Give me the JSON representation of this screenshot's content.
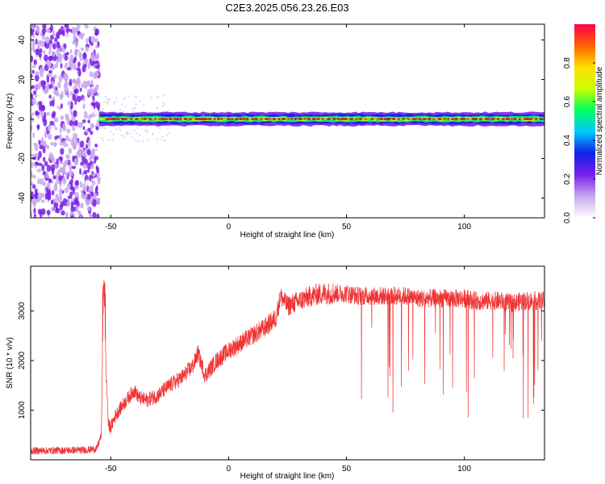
{
  "title": "C2E3.2025.056.23.26.E03",
  "chart_data": [
    {
      "type": "heatmap",
      "title": "C2E3.2025.056.23.26.E03",
      "xlabel": "Height of straight line (km)",
      "ylabel": "Frequency (Hz)",
      "xlim": [
        -84,
        134
      ],
      "ylim": [
        -50,
        48
      ],
      "xticks": [
        -50,
        0,
        50,
        100
      ],
      "yticks": [
        -40,
        -20,
        0,
        20,
        40
      ],
      "colorbar": {
        "label": "Normalized spectral amplitude",
        "range": [
          0.0,
          1.0
        ],
        "ticks": [
          0.0,
          0.2,
          0.4,
          0.6,
          0.8
        ],
        "colormap": [
          "#ffffff",
          "#c8a8f0",
          "#7a20e8",
          "#1020e8",
          "#00c8ff",
          "#00ff60",
          "#c8ff00",
          "#ffe000",
          "#ff6000",
          "#ff0050"
        ]
      },
      "regions": [
        {
          "x": [
            -84,
            -55
          ],
          "freq": [
            -50,
            48
          ],
          "amplitude": [
            0.05,
            0.25
          ],
          "note_color": "#7a20e8"
        },
        {
          "x": [
            -55,
            134
          ],
          "freq": [
            -2,
            2
          ],
          "amplitude": [
            0.3,
            1.0
          ],
          "peak_freq": 0
        }
      ]
    },
    {
      "type": "line",
      "xlabel": "Height of straight line (km)",
      "ylabel": "SNR (10 * v/v)",
      "xlim": [
        -84,
        134
      ],
      "ylim": [
        0,
        3900
      ],
      "xticks": [
        -50,
        0,
        50,
        100
      ],
      "yticks": [
        1000,
        2000,
        3000
      ],
      "color": "#ee3333",
      "series": [
        {
          "x": [
            -84,
            -70,
            -60,
            -56,
            -54,
            -53,
            -52,
            -51,
            -50,
            -48,
            -45,
            -40,
            -38,
            -35,
            -30,
            -25,
            -20,
            -15,
            -13,
            -10,
            -5,
            0,
            5,
            10,
            15,
            20,
            22,
            25,
            30,
            35,
            40,
            45,
            50,
            55,
            60,
            65,
            70,
            75,
            80,
            85,
            90,
            95,
            100,
            105,
            110,
            115,
            120,
            125,
            130,
            134
          ],
          "values": [
            180,
            190,
            200,
            220,
            500,
            3650,
            1800,
            700,
            650,
            900,
            1100,
            1400,
            1250,
            1200,
            1300,
            1500,
            1650,
            1900,
            2150,
            1700,
            2000,
            2200,
            2350,
            2500,
            2650,
            2850,
            3300,
            3100,
            3200,
            3300,
            3350,
            3350,
            3350,
            3300,
            3300,
            3300,
            3300,
            3300,
            3250,
            3250,
            3250,
            3250,
            3250,
            3200,
            3200,
            3200,
            3150,
            3200,
            3200,
            3200
          ]
        }
      ]
    }
  ]
}
